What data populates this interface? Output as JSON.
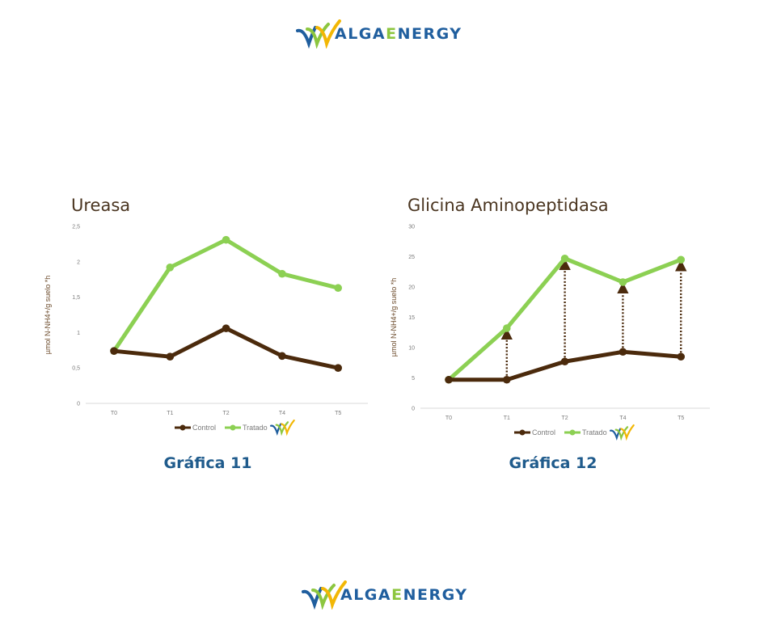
{
  "brand": {
    "prefix": "ALGA",
    "e": "E",
    "suffix": "NERGY"
  },
  "charts": {
    "ureasa": {
      "caption": "Gráfica 11"
    },
    "glicina": {
      "caption": "Gráfica 12"
    }
  },
  "colors": {
    "control": "#4b2a0c",
    "tratado": "#8cd053",
    "arrow": "#4b2a0c"
  },
  "chart_data": [
    {
      "type": "line",
      "title": "Ureasa",
      "xlabel": "",
      "ylabel": "µmol N-NH4+/g suelo *h",
      "categories": [
        "T0",
        "T1",
        "T2",
        "T4",
        "T5"
      ],
      "ylim": [
        0,
        2.5
      ],
      "yticks": [
        "0",
        "0,5",
        "1",
        "1,5",
        "2",
        "2,5"
      ],
      "grid": false,
      "legend": "bottom",
      "series": [
        {
          "name": "Control",
          "values": [
            0.74,
            0.66,
            1.06,
            0.67,
            0.5
          ]
        },
        {
          "name": "Tratado",
          "values": [
            0.74,
            1.92,
            2.31,
            1.83,
            1.63
          ]
        }
      ]
    },
    {
      "type": "line",
      "title": "Glicina Aminopeptidasa",
      "xlabel": "",
      "ylabel": "µmol N-NH4+/g suelo *h",
      "categories": [
        "T0",
        "T1",
        "T2",
        "T4",
        "T5"
      ],
      "ylim": [
        0,
        30
      ],
      "yticks": [
        "0",
        "5",
        "10",
        "15",
        "20",
        "25",
        "30"
      ],
      "grid": false,
      "legend": "bottom",
      "series": [
        {
          "name": "Control",
          "values": [
            4.7,
            4.7,
            7.7,
            9.3,
            8.5
          ]
        },
        {
          "name": "Tratado",
          "values": [
            4.7,
            13.2,
            24.7,
            20.8,
            24.5
          ]
        }
      ],
      "annotations": "dotted arrows from Control up to Tratado at T1, T2, T4, T5"
    }
  ]
}
